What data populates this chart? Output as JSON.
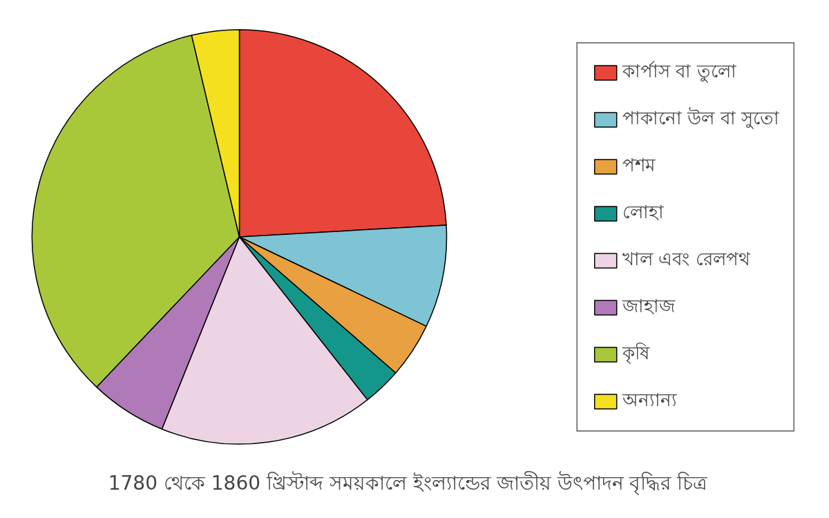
{
  "chart_data": {
    "type": "pie",
    "title": "1780 থেকে 1860 খ্রিস্টাব্দ সময়কালে ইংল্যান্ডের জাতীয় উৎপাদন বৃদ্ধির চিত্র",
    "categories": [
      "কার্পাস বা তুলো",
      "পাকানো উল বা সুতো",
      "পশম",
      "লোহা",
      "খাল এবং রেলপথ",
      "জাহাজ",
      "কৃষি",
      "অন্যান্য"
    ],
    "values": [
      24.1,
      8,
      4.3,
      3,
      16.7,
      6,
      34.2,
      3.7
    ],
    "colors": [
      "#e8463a",
      "#7ec4d4",
      "#e8a040",
      "#14968a",
      "#ecd4e4",
      "#b07ab8",
      "#a8c83a",
      "#f5e020"
    ],
    "legend": "right"
  }
}
